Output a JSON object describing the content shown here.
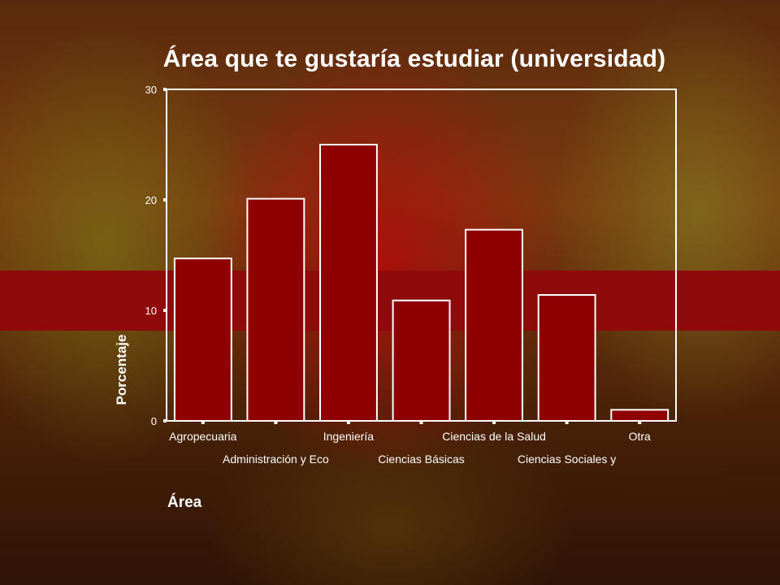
{
  "colors": {
    "bar_fill": "#8f0000",
    "bar_stroke": "#ffffff",
    "text": "#ffffff",
    "band": "#8f0b0b"
  },
  "chart_data": {
    "type": "bar",
    "title": "Área que te gustaría estudiar (universidad)",
    "xlabel": "Área",
    "ylabel": "Porcentaje",
    "ylim": [
      0,
      30
    ],
    "yticks": [
      0,
      10,
      20,
      30
    ],
    "grid": false,
    "categories": [
      "Agropecuaria",
      "Administración y Eco",
      "Ingeniería",
      "Ciencias Básicas",
      "Ciencias de la Salud",
      "Ciencias Sociales y",
      "Otra"
    ],
    "values": [
      14.7,
      20.1,
      25.0,
      10.9,
      17.3,
      11.4,
      1.0
    ]
  }
}
